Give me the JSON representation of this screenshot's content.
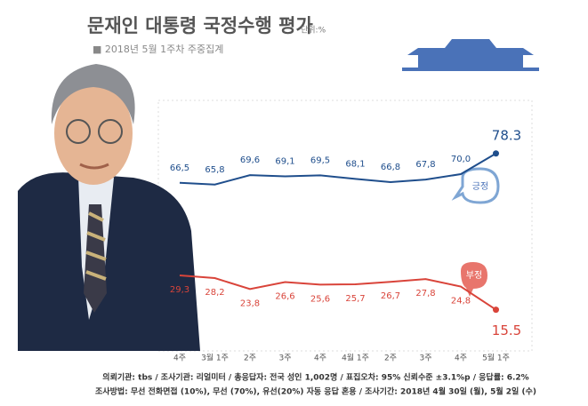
{
  "chart_data": {
    "type": "line",
    "title": "문재인 대통령 국정수행 평가",
    "unit": "단위:%",
    "subtitle": "■ 2018년 5월 1주차 주중집계",
    "categories": [
      "4주",
      "3월 1주",
      "2주",
      "3주",
      "4주",
      "4월 1주",
      "2주",
      "3주",
      "4주",
      "5월 1주"
    ],
    "series": [
      {
        "name": "긍정",
        "color": "#1f4e8c",
        "values": [
          66.5,
          65.8,
          69.6,
          69.1,
          69.5,
          68.1,
          66.8,
          67.8,
          70.0,
          78.3
        ],
        "value_labels": [
          "66,5",
          "65,8",
          "69,6",
          "69,1",
          "69,5",
          "68,1",
          "66,8",
          "67,8",
          "70,0",
          "78.3"
        ]
      },
      {
        "name": "부정",
        "color": "#d9443a",
        "values": [
          29.3,
          28.2,
          23.8,
          26.6,
          25.6,
          25.7,
          26.7,
          27.8,
          24.8,
          15.5
        ],
        "value_labels": [
          "29,3",
          "28,2",
          "23,8",
          "26,6",
          "25,6",
          "25,7",
          "26,7",
          "27,8",
          "24,8",
          "15.5"
        ]
      }
    ],
    "ylim": [
      0,
      100
    ],
    "notes": [
      "의뢰기관: tbs / 조사기관: 리얼미터 / 총응답자: 전국 성인 1,002명 / 표집오차: 95% 신뢰수준 ±3.1%p / 응답률: 6.2%",
      "조사방법: 무선 전화면접 (10%), 무선 (70%), 유선(20%) 자동 응답 혼용 / 조사기간: 2018년 4월 30일 (월), 5월 2일 (수)"
    ]
  }
}
